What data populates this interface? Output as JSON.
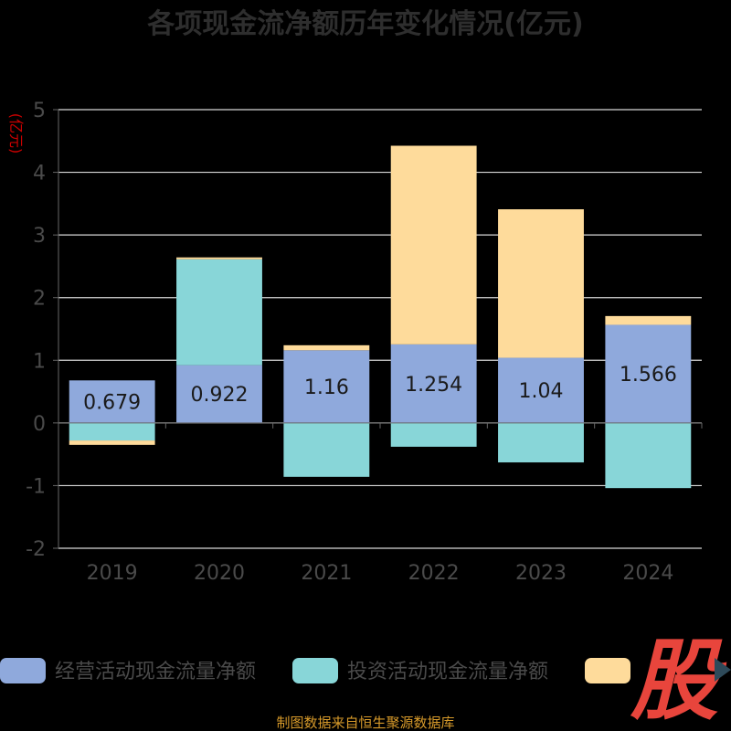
{
  "chart_data": {
    "type": "bar",
    "stacked": true,
    "title": "各项现金流净额历年变化情况(亿元)",
    "unit_label": "(亿元)",
    "categories": [
      "2019",
      "2020",
      "2021",
      "2022",
      "2023",
      "2024"
    ],
    "ylim": [
      -2,
      5
    ],
    "yticks": [
      5,
      4,
      3,
      2,
      1,
      0,
      -1,
      -2
    ],
    "grid": true,
    "legend_position": "bottom",
    "series": [
      {
        "name": "经营活动现金流量净额",
        "color": "#8fa9dc",
        "values": [
          0.679,
          0.922,
          1.16,
          1.254,
          1.04,
          1.566
        ],
        "labels": [
          "0.679",
          "0.922",
          "1.16",
          "1.254",
          "1.04",
          "1.566"
        ]
      },
      {
        "name": "投资活动现金流量净额",
        "color": "#88d6d8",
        "values": [
          -0.28,
          1.69,
          -0.86,
          -0.38,
          -0.63,
          -1.04
        ]
      },
      {
        "name": "",
        "color": "#fedb9b",
        "values": [
          -0.07,
          0.03,
          0.08,
          3.17,
          2.37,
          0.14
        ]
      }
    ],
    "source": "制图数据来自恒生聚源数据库"
  },
  "logo": {
    "text": "股"
  }
}
